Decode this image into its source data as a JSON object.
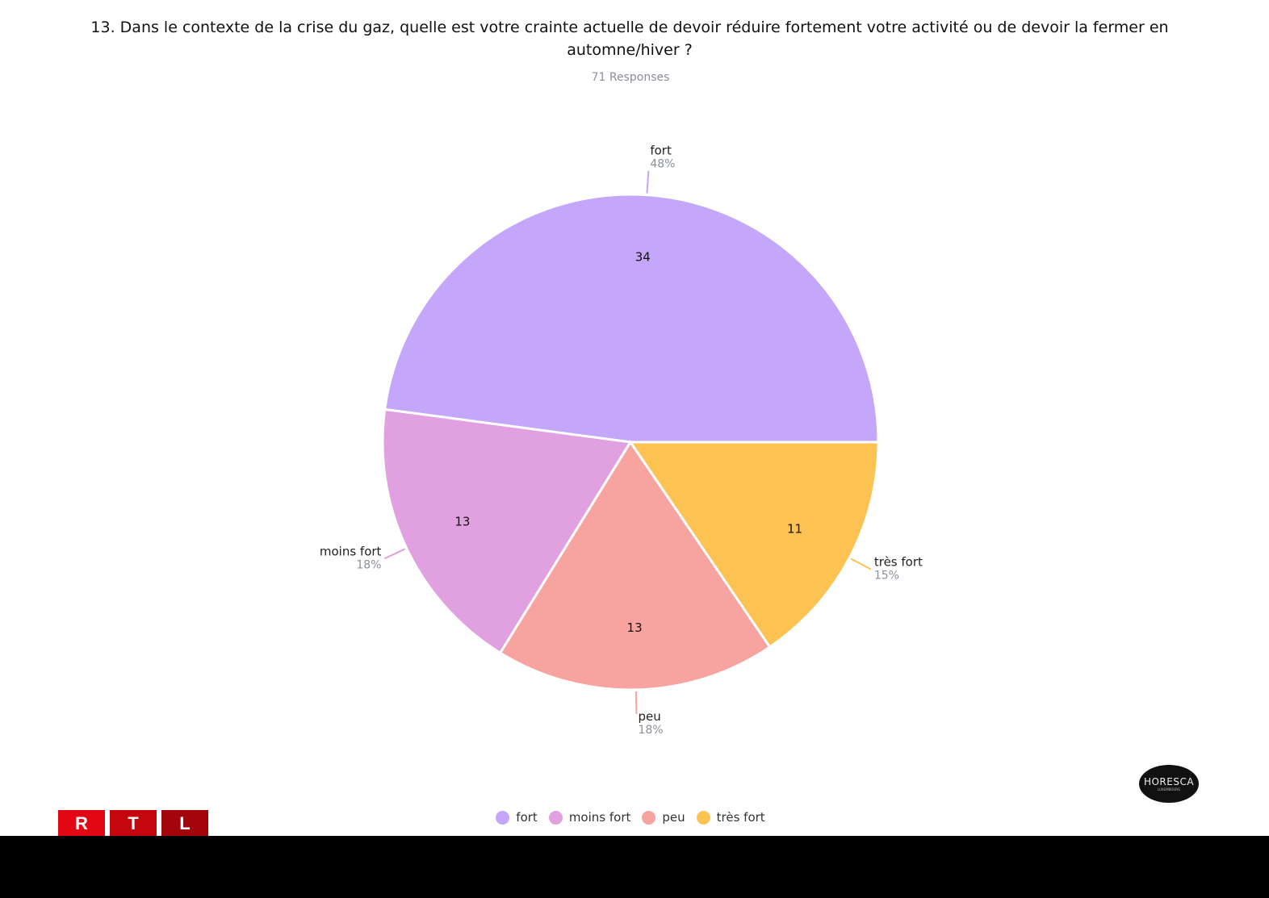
{
  "title": "13. Dans le contexte de la crise du gaz, quelle est votre crainte actuelle de devoir réduire fortement votre activité ou de devoir la fermer en automne/hiver ?",
  "subtitle": "71 Responses",
  "chart_data": {
    "type": "pie",
    "title": "13. Dans le contexte de la crise du gaz, quelle est votre crainte actuelle de devoir réduire fortement votre activité ou de devoir la fermer en automne/hiver ?",
    "total": 71,
    "slices": [
      {
        "label": "fort",
        "value": 34,
        "percent": "48%",
        "color": "#c4a7fb"
      },
      {
        "label": "moins fort",
        "value": 13,
        "percent": "18%",
        "color": "#e1a0e0"
      },
      {
        "label": "peu",
        "value": 13,
        "percent": "18%",
        "color": "#f7a3a0"
      },
      {
        "label": "très fort",
        "value": 11,
        "percent": "15%",
        "color": "#fdc352"
      }
    ],
    "legend_position": "bottom"
  },
  "logos": {
    "rtl": [
      "R",
      "T",
      "L"
    ],
    "rtl_colors": [
      "#e30613",
      "#c4060f",
      "#a3050c"
    ],
    "horesca": "HORESCA",
    "horesca_sub": "LUXEMBOURG"
  }
}
